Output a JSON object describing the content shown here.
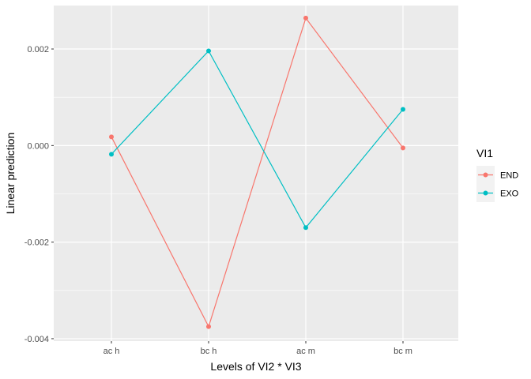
{
  "chart_data": {
    "type": "line",
    "xlabel": "Levels of VI2 * VI3",
    "ylabel": "Linear prediction",
    "categories": [
      "ac h",
      "bc h",
      "ac m",
      "bc m"
    ],
    "ylim": [
      -0.00405,
      0.0029
    ],
    "yticks": [
      -0.004,
      -0.002,
      0.0,
      0.002
    ],
    "ytick_labels": [
      "-0.004",
      "-0.002",
      "0.000",
      "0.002"
    ],
    "grid": true,
    "legend": {
      "title": "VI1",
      "position": "right"
    },
    "series": [
      {
        "name": "END",
        "color": "#F8766D",
        "values": [
          0.00018,
          -0.00375,
          0.00264,
          -5e-05
        ]
      },
      {
        "name": "EXO",
        "color": "#00BFC4",
        "values": [
          -0.00018,
          0.00196,
          -0.0017,
          0.00075
        ]
      }
    ]
  }
}
